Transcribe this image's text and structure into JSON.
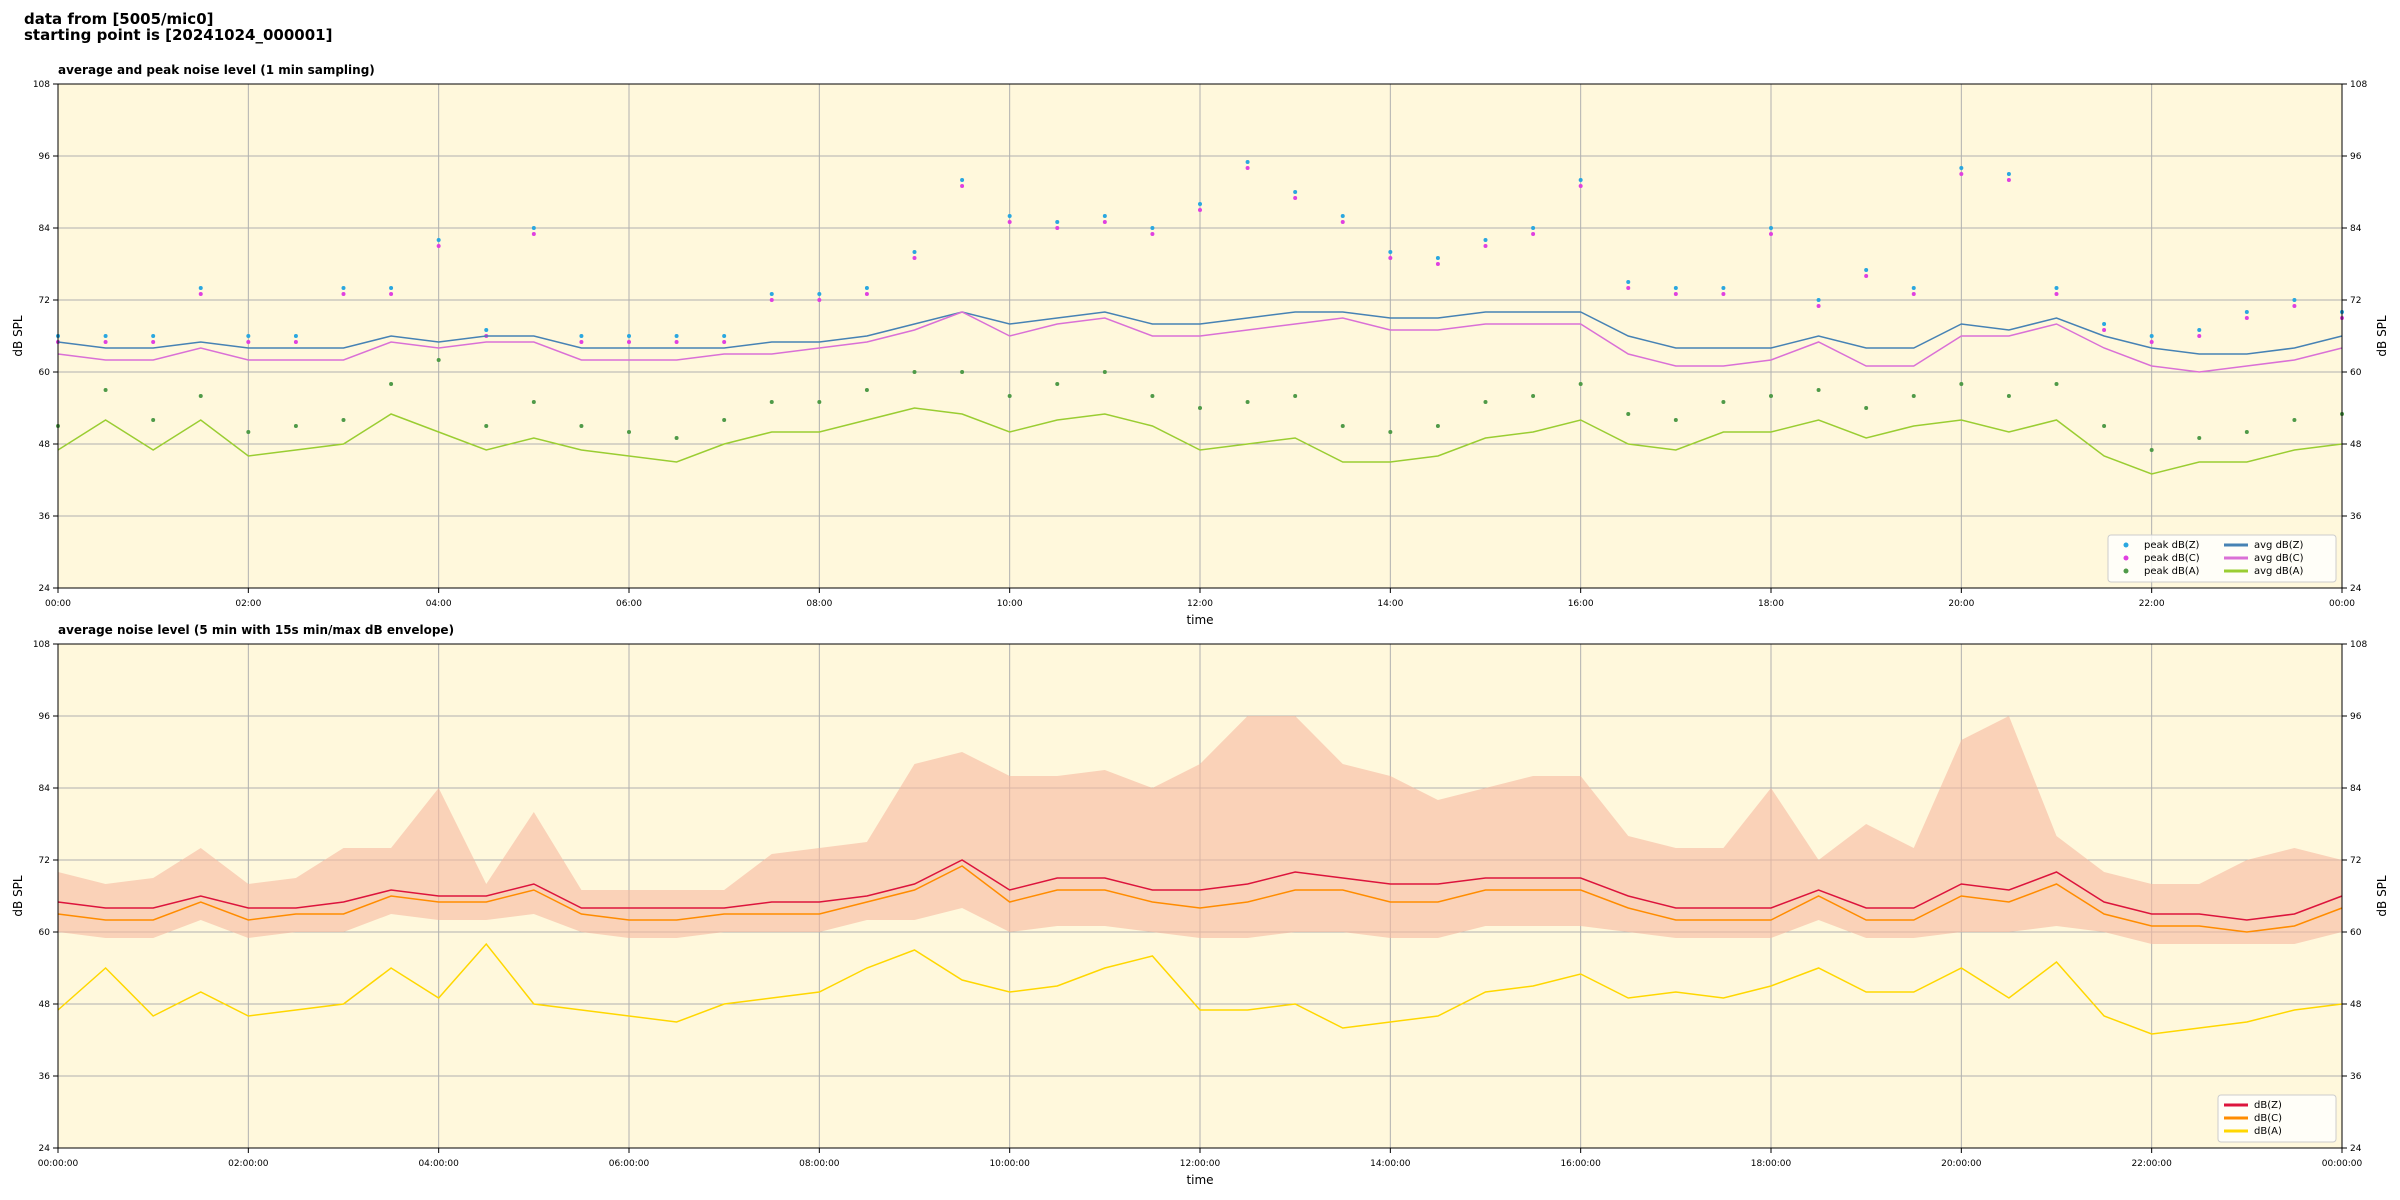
{
  "header": {
    "line1": "data from [5005/mic0]",
    "line2": "starting point is [20241024_000001]"
  },
  "chart_data": [
    {
      "type": "line",
      "title": "average and peak noise level (1 min sampling)",
      "xlabel": "time",
      "ylabel": "dB SPL",
      "background": "#fff8dc",
      "grid": true,
      "legend": "lower right",
      "legend_columns": 2,
      "x": [
        0,
        0.5,
        1,
        1.5,
        2,
        2.5,
        3,
        3.5,
        4,
        4.5,
        5,
        5.5,
        6,
        6.5,
        7,
        7.5,
        8,
        8.5,
        9,
        9.5,
        10,
        10.5,
        11,
        11.5,
        12,
        12.5,
        13,
        13.5,
        14,
        14.5,
        15,
        15.5,
        16,
        16.5,
        17,
        17.5,
        18,
        18.5,
        19,
        19.5,
        20,
        20.5,
        21,
        21.5,
        22,
        22.5,
        23,
        23.5,
        24
      ],
      "xlim": [
        0,
        24
      ],
      "xticks": [
        {
          "value": 0,
          "label": "00:00"
        },
        {
          "value": 2,
          "label": "02:00"
        },
        {
          "value": 4,
          "label": "04:00"
        },
        {
          "value": 6,
          "label": "06:00"
        },
        {
          "value": 8,
          "label": "08:00"
        },
        {
          "value": 10,
          "label": "10:00"
        },
        {
          "value": 12,
          "label": "12:00"
        },
        {
          "value": 14,
          "label": "14:00"
        },
        {
          "value": 16,
          "label": "16:00"
        },
        {
          "value": 18,
          "label": "18:00"
        },
        {
          "value": 20,
          "label": "20:00"
        },
        {
          "value": 22,
          "label": "22:00"
        },
        {
          "value": 24,
          "label": "00:00"
        }
      ],
      "ylim": [
        24,
        108
      ],
      "yticks": [
        24,
        36,
        48,
        60,
        72,
        84,
        96,
        108
      ],
      "series": [
        {
          "name": "peak dB(Z)",
          "color": "#2aa7e0",
          "marker": "dot",
          "values": [
            66,
            66,
            66,
            74,
            66,
            66,
            74,
            74,
            82,
            67,
            84,
            66,
            66,
            66,
            66,
            73,
            73,
            74,
            80,
            92,
            86,
            85,
            86,
            84,
            88,
            95,
            90,
            86,
            80,
            79,
            82,
            84,
            92,
            75,
            74,
            74,
            84,
            72,
            77,
            74,
            94,
            93,
            74,
            68,
            66,
            67,
            70,
            72,
            70
          ]
        },
        {
          "name": "peak dB(C)",
          "color": "#e040e0",
          "marker": "dot",
          "values": [
            65,
            65,
            65,
            73,
            65,
            65,
            73,
            73,
            81,
            66,
            83,
            65,
            65,
            65,
            65,
            72,
            72,
            73,
            79,
            91,
            85,
            84,
            85,
            83,
            87,
            94,
            89,
            85,
            79,
            78,
            81,
            83,
            91,
            74,
            73,
            73,
            83,
            71,
            76,
            73,
            93,
            92,
            73,
            67,
            65,
            66,
            69,
            71,
            69
          ]
        },
        {
          "name": "peak dB(A)",
          "color": "#4f9a48",
          "marker": "dot",
          "values": [
            51,
            57,
            52,
            56,
            50,
            51,
            52,
            58,
            62,
            51,
            55,
            51,
            50,
            49,
            52,
            55,
            55,
            57,
            60,
            60,
            56,
            58,
            60,
            56,
            54,
            55,
            56,
            51,
            50,
            51,
            55,
            56,
            58,
            53,
            52,
            55,
            56,
            57,
            54,
            56,
            58,
            56,
            58,
            51,
            47,
            49,
            50,
            52,
            53
          ]
        },
        {
          "name": "avg dB(Z)",
          "color": "#4682b4",
          "marker": "line",
          "values": [
            65,
            64,
            64,
            65,
            64,
            64,
            64,
            66,
            65,
            66,
            66,
            64,
            64,
            64,
            64,
            65,
            65,
            66,
            68,
            70,
            68,
            69,
            70,
            68,
            68,
            69,
            70,
            70,
            69,
            69,
            70,
            70,
            70,
            66,
            64,
            64,
            64,
            66,
            64,
            64,
            68,
            67,
            69,
            66,
            64,
            63,
            63,
            64,
            66
          ]
        },
        {
          "name": "avg dB(C)",
          "color": "#da70d6",
          "marker": "line",
          "values": [
            63,
            62,
            62,
            64,
            62,
            62,
            62,
            65,
            64,
            65,
            65,
            62,
            62,
            62,
            63,
            63,
            64,
            65,
            67,
            70,
            66,
            68,
            69,
            66,
            66,
            67,
            68,
            69,
            67,
            67,
            68,
            68,
            68,
            63,
            61,
            61,
            62,
            65,
            61,
            61,
            66,
            66,
            68,
            64,
            61,
            60,
            61,
            62,
            64
          ]
        },
        {
          "name": "avg dB(A)",
          "color": "#9acd32",
          "marker": "line",
          "values": [
            47,
            52,
            47,
            52,
            46,
            47,
            48,
            53,
            50,
            47,
            49,
            47,
            46,
            45,
            48,
            50,
            50,
            52,
            54,
            53,
            50,
            52,
            53,
            51,
            47,
            48,
            49,
            45,
            45,
            46,
            49,
            50,
            52,
            48,
            47,
            50,
            50,
            52,
            49,
            51,
            52,
            50,
            52,
            46,
            43,
            45,
            45,
            47,
            48
          ]
        }
      ]
    },
    {
      "type": "line",
      "title": "average noise level (5 min with 15s min/max dB envelope)",
      "xlabel": "time",
      "ylabel": "dB SPL",
      "background": "#fff8dc",
      "grid": true,
      "legend": "lower right",
      "legend_columns": 1,
      "x": [
        0,
        0.5,
        1,
        1.5,
        2,
        2.5,
        3,
        3.5,
        4,
        4.5,
        5,
        5.5,
        6,
        6.5,
        7,
        7.5,
        8,
        8.5,
        9,
        9.5,
        10,
        10.5,
        11,
        11.5,
        12,
        12.5,
        13,
        13.5,
        14,
        14.5,
        15,
        15.5,
        16,
        16.5,
        17,
        17.5,
        18,
        18.5,
        19,
        19.5,
        20,
        20.5,
        21,
        21.5,
        22,
        22.5,
        23,
        23.5,
        24
      ],
      "xlim": [
        0,
        24
      ],
      "xticks": [
        {
          "value": 0,
          "label": "00:00:00"
        },
        {
          "value": 2,
          "label": "02:00:00"
        },
        {
          "value": 4,
          "label": "04:00:00"
        },
        {
          "value": 6,
          "label": "06:00:00"
        },
        {
          "value": 8,
          "label": "08:00:00"
        },
        {
          "value": 10,
          "label": "10:00:00"
        },
        {
          "value": 12,
          "label": "12:00:00"
        },
        {
          "value": 14,
          "label": "14:00:00"
        },
        {
          "value": 16,
          "label": "16:00:00"
        },
        {
          "value": 18,
          "label": "18:00:00"
        },
        {
          "value": 20,
          "label": "20:00:00"
        },
        {
          "value": 22,
          "label": "22:00:00"
        },
        {
          "value": 24,
          "label": "00:00:00"
        }
      ],
      "ylim": [
        24,
        108
      ],
      "yticks": [
        24,
        36,
        48,
        60,
        72,
        84,
        96,
        108
      ],
      "envelope": {
        "color": "#f7b9a0",
        "min": [
          60,
          59,
          59,
          62,
          59,
          60,
          60,
          63,
          62,
          62,
          63,
          60,
          59,
          59,
          60,
          60,
          60,
          62,
          62,
          64,
          60,
          61,
          61,
          60,
          59,
          59,
          60,
          60,
          59,
          59,
          61,
          61,
          61,
          60,
          59,
          59,
          59,
          62,
          59,
          59,
          60,
          60,
          61,
          60,
          58,
          58,
          58,
          58,
          60
        ],
        "max": [
          70,
          68,
          69,
          74,
          68,
          69,
          74,
          74,
          84,
          68,
          80,
          67,
          67,
          67,
          67,
          73,
          74,
          75,
          88,
          90,
          86,
          86,
          87,
          84,
          88,
          96,
          96,
          88,
          86,
          82,
          84,
          86,
          86,
          76,
          74,
          74,
          84,
          72,
          78,
          74,
          92,
          96,
          76,
          70,
          68,
          68,
          72,
          74,
          72
        ]
      },
      "series": [
        {
          "name": "dB(Z)",
          "color": "#dc143c",
          "marker": "line",
          "values": [
            65,
            64,
            64,
            66,
            64,
            64,
            65,
            67,
            66,
            66,
            68,
            64,
            64,
            64,
            64,
            65,
            65,
            66,
            68,
            72,
            67,
            69,
            69,
            67,
            67,
            68,
            70,
            69,
            68,
            68,
            69,
            69,
            69,
            66,
            64,
            64,
            64,
            67,
            64,
            64,
            68,
            67,
            70,
            65,
            63,
            63,
            62,
            63,
            66
          ]
        },
        {
          "name": "dB(C)",
          "color": "#ff8c00",
          "marker": "line",
          "values": [
            63,
            62,
            62,
            65,
            62,
            63,
            63,
            66,
            65,
            65,
            67,
            63,
            62,
            62,
            63,
            63,
            63,
            65,
            67,
            71,
            65,
            67,
            67,
            65,
            64,
            65,
            67,
            67,
            65,
            65,
            67,
            67,
            67,
            64,
            62,
            62,
            62,
            66,
            62,
            62,
            66,
            65,
            68,
            63,
            61,
            61,
            60,
            61,
            64
          ]
        },
        {
          "name": "dB(A)",
          "color": "#ffd700",
          "marker": "line",
          "values": [
            47,
            54,
            46,
            50,
            46,
            47,
            48,
            54,
            49,
            58,
            48,
            47,
            46,
            45,
            48,
            49,
            50,
            54,
            57,
            52,
            50,
            51,
            54,
            56,
            47,
            47,
            48,
            44,
            45,
            46,
            50,
            51,
            53,
            49,
            50,
            49,
            51,
            54,
            50,
            50,
            54,
            49,
            55,
            46,
            43,
            44,
            45,
            47,
            48
          ]
        }
      ]
    }
  ]
}
